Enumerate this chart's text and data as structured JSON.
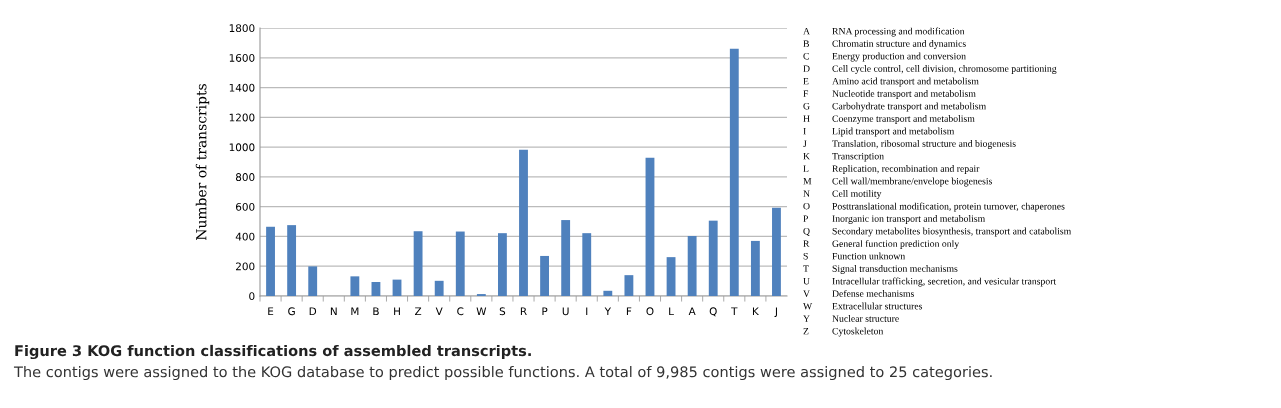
{
  "chart_data": {
    "type": "bar",
    "title": "Figure 3 KOG function classifications of assembled transcripts.",
    "subtitle": "The contigs were assigned to the KOG database to predict possible functions. A total of 9,985 contigs were assigned to 25 categories.",
    "ylabel": "Number of transcripts",
    "categories": [
      "E",
      "G",
      "D",
      "N",
      "M",
      "B",
      "H",
      "Z",
      "V",
      "C",
      "W",
      "S",
      "R",
      "P",
      "U",
      "I",
      "Y",
      "F",
      "O",
      "L",
      "A",
      "Q",
      "T",
      "K",
      "J"
    ],
    "values": [
      465,
      476,
      199,
      0,
      132,
      94,
      110,
      435,
      102,
      433,
      13,
      422,
      983,
      269,
      510,
      422,
      35,
      140,
      928,
      261,
      403,
      506,
      1660,
      370,
      593
    ],
    "color": "#4f81bd",
    "ylim": [
      0,
      1800
    ],
    "yticks": [
      0,
      200,
      400,
      600,
      800,
      1000,
      1200,
      1400,
      1600,
      1800
    ],
    "grid": "y",
    "annotations": [
      "A RNA processing and modification",
      "B Chromatin structure and dynamics",
      "C Energy production and conversion",
      "D Cell cycle control, cell division, chromosome partitioning",
      "E Amino acid transport and metabolism",
      "F Nucleotide transport and metabolism",
      "G Carbohydrate transport and metabolism",
      "H Coenzyme transport and metabolism",
      "I Lipid transport and metabolism",
      "J Translation, ribosomal structure and biogenesis",
      "K Transcription",
      "L Replication, recombination and repair",
      "M Cell wall/membrane/envelope biogenesis",
      "N Cell motility",
      "O Posttranslational modification, protein turnover, chaperones",
      "P Inorganic ion transport and metabolism",
      "Q Secondary metabolites biosynthesis, transport and catabolism",
      "R General function prediction only",
      "S Function unknown",
      "T Signal transduction mechanisms",
      "U Intracellular trafficking, secretion, and vesicular transport",
      "V Defense mechanisms",
      "W Extracellular structures",
      "Y Nuclear structure",
      "Z Cytoskeleton"
    ]
  }
}
